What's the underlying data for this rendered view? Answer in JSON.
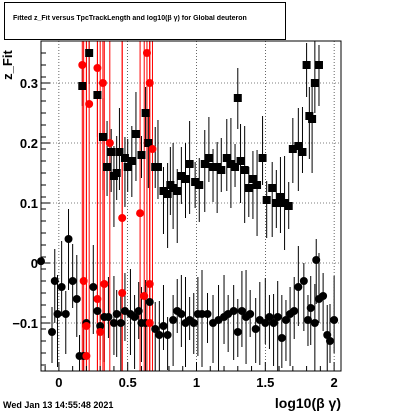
{
  "title": "Fitted z_Fit versus TpcTrackLength and log10(β γ) for Global deuteron",
  "datestamp": "Wed Jan 13 14:55:48 2021",
  "chart_data": {
    "type": "scatter",
    "title": "Fitted z_Fit versus TpcTrackLength and log10(β γ) for Global deuteron",
    "xlabel": "log10(β γ)",
    "ylabel": "z_Fit",
    "xlim": [
      -0.13,
      2.05
    ],
    "ylim": [
      -0.18,
      0.37
    ],
    "xticks": [
      0,
      0.5,
      1,
      1.5,
      2
    ],
    "xtick_labels": [
      "0",
      "0.5",
      "1",
      "1.5",
      "2"
    ],
    "yticks": [
      -0.1,
      0,
      0.1,
      0.2,
      0.3
    ],
    "ytick_labels": [
      "−0.1",
      "0",
      "0.1",
      "0.2",
      "0.3"
    ],
    "grid": true,
    "series": [
      {
        "color": "#000000",
        "marker": "square",
        "points": [
          [
            0.17,
            0.295
          ],
          [
            0.22,
            0.35
          ],
          [
            0.28,
            0.28
          ],
          [
            0.32,
            0.21
          ],
          [
            0.35,
            0.16
          ],
          [
            0.38,
            0.185
          ],
          [
            0.4,
            0.145
          ],
          [
            0.42,
            0.15
          ],
          [
            0.44,
            0.185
          ],
          [
            0.48,
            0.175
          ],
          [
            0.5,
            0.16
          ],
          [
            0.53,
            0.17
          ],
          [
            0.56,
            0.215
          ],
          [
            0.6,
            0.18
          ],
          [
            0.63,
            0.25
          ],
          [
            0.65,
            0.2
          ],
          [
            0.7,
            0.16
          ],
          [
            0.72,
            0.16
          ],
          [
            0.76,
            0.12
          ],
          [
            0.79,
            0.115
          ],
          [
            0.81,
            0.13
          ],
          [
            0.83,
            0.125
          ],
          [
            0.86,
            0.12
          ],
          [
            0.89,
            0.145
          ],
          [
            0.92,
            0.14
          ],
          [
            0.95,
            0.165
          ],
          [
            0.99,
            0.135
          ],
          [
            1.02,
            0.13
          ],
          [
            1.06,
            0.165
          ],
          [
            1.09,
            0.175
          ],
          [
            1.12,
            0.16
          ],
          [
            1.15,
            0.16
          ],
          [
            1.18,
            0.155
          ],
          [
            1.22,
            0.175
          ],
          [
            1.25,
            0.165
          ],
          [
            1.28,
            0.16
          ],
          [
            1.3,
            0.275
          ],
          [
            1.32,
            0.17
          ],
          [
            1.35,
            0.155
          ],
          [
            1.38,
            0.125
          ],
          [
            1.41,
            0.14
          ],
          [
            1.44,
            0.13
          ],
          [
            1.48,
            0.175
          ],
          [
            1.51,
            0.105
          ],
          [
            1.55,
            0.125
          ],
          [
            1.58,
            0.1
          ],
          [
            1.61,
            0.11
          ],
          [
            1.64,
            0.1
          ],
          [
            1.67,
            0.095
          ],
          [
            1.7,
            0.19
          ],
          [
            1.74,
            0.195
          ],
          [
            1.77,
            0.185
          ],
          [
            1.8,
            0.33
          ],
          [
            1.82,
            0.245
          ],
          [
            1.84,
            0.24
          ],
          [
            1.86,
            0.3
          ],
          [
            1.89,
            0.33
          ]
        ]
      },
      {
        "color": "#000000",
        "marker": "circle",
        "points": [
          [
            -0.13,
            0.003
          ],
          [
            -0.05,
            -0.115
          ],
          [
            -0.03,
            -0.03
          ],
          [
            -0.01,
            -0.085
          ],
          [
            0.02,
            -0.04
          ],
          [
            0.05,
            -0.085
          ],
          [
            0.07,
            0.04
          ],
          [
            0.1,
            -0.03
          ],
          [
            0.13,
            -0.06
          ],
          [
            0.15,
            -0.155
          ],
          [
            0.18,
            -0.155
          ],
          [
            0.2,
            -0.1
          ],
          [
            0.25,
            -0.04
          ],
          [
            0.28,
            -0.08
          ],
          [
            0.3,
            -0.105
          ],
          [
            0.33,
            -0.09
          ],
          [
            0.36,
            -0.09
          ],
          [
            0.4,
            -0.1
          ],
          [
            0.42,
            -0.085
          ],
          [
            0.45,
            -0.1
          ],
          [
            0.48,
            -0.08
          ],
          [
            0.52,
            -0.085
          ],
          [
            0.55,
            -0.09
          ],
          [
            0.58,
            -0.08
          ],
          [
            0.6,
            -0.1
          ],
          [
            0.63,
            -0.1
          ],
          [
            0.66,
            -0.065
          ],
          [
            0.7,
            -0.11
          ],
          [
            0.73,
            -0.12
          ],
          [
            0.76,
            -0.105
          ],
          [
            0.79,
            -0.12
          ],
          [
            0.83,
            -0.095
          ],
          [
            0.86,
            -0.08
          ],
          [
            0.89,
            -0.085
          ],
          [
            0.92,
            -0.1
          ],
          [
            0.95,
            -0.095
          ],
          [
            0.98,
            -0.1
          ],
          [
            1.01,
            -0.085
          ],
          [
            1.04,
            -0.085
          ],
          [
            1.08,
            -0.085
          ],
          [
            1.12,
            -0.1
          ],
          [
            1.16,
            -0.095
          ],
          [
            1.2,
            -0.09
          ],
          [
            1.23,
            -0.085
          ],
          [
            1.27,
            -0.08
          ],
          [
            1.3,
            -0.115
          ],
          [
            1.33,
            -0.08
          ],
          [
            1.36,
            -0.09
          ],
          [
            1.39,
            -0.085
          ],
          [
            1.43,
            -0.11
          ],
          [
            1.46,
            -0.095
          ],
          [
            1.5,
            -0.1
          ],
          [
            1.53,
            -0.09
          ],
          [
            1.56,
            -0.1
          ],
          [
            1.59,
            -0.09
          ],
          [
            1.62,
            -0.125
          ],
          [
            1.65,
            -0.095
          ],
          [
            1.68,
            -0.085
          ],
          [
            1.71,
            -0.08
          ],
          [
            1.74,
            -0.04
          ],
          [
            1.78,
            -0.03
          ],
          [
            1.81,
            -0.095
          ],
          [
            1.83,
            -0.075
          ],
          [
            1.86,
            -0.1
          ],
          [
            1.89,
            -0.06
          ],
          [
            1.92,
            -0.055
          ],
          [
            1.95,
            -0.12
          ],
          [
            1.97,
            -0.13
          ],
          [
            2.0,
            -0.095
          ],
          [
            1.87,
            0.005
          ]
        ]
      },
      {
        "color": "#ff0000",
        "marker": "circle",
        "points": [
          [
            0.17,
            0.33
          ],
          [
            0.22,
            0.265
          ],
          [
            0.28,
            0.325
          ],
          [
            0.32,
            0.3
          ],
          [
            0.37,
            0.2
          ],
          [
            0.2,
            -0.155
          ],
          [
            0.18,
            -0.03
          ],
          [
            0.2,
            -0.105
          ],
          [
            0.28,
            -0.06
          ],
          [
            0.3,
            -0.115
          ],
          [
            0.33,
            -0.035
          ],
          [
            0.46,
            -0.05
          ],
          [
            0.46,
            0.075
          ],
          [
            0.59,
            0.083
          ],
          [
            0.62,
            -0.055
          ],
          [
            0.66,
            -0.035
          ],
          [
            0.64,
            0.35
          ],
          [
            0.66,
            0.3
          ],
          [
            0.68,
            0.19
          ],
          [
            0.66,
            -0.1
          ]
        ]
      }
    ]
  }
}
